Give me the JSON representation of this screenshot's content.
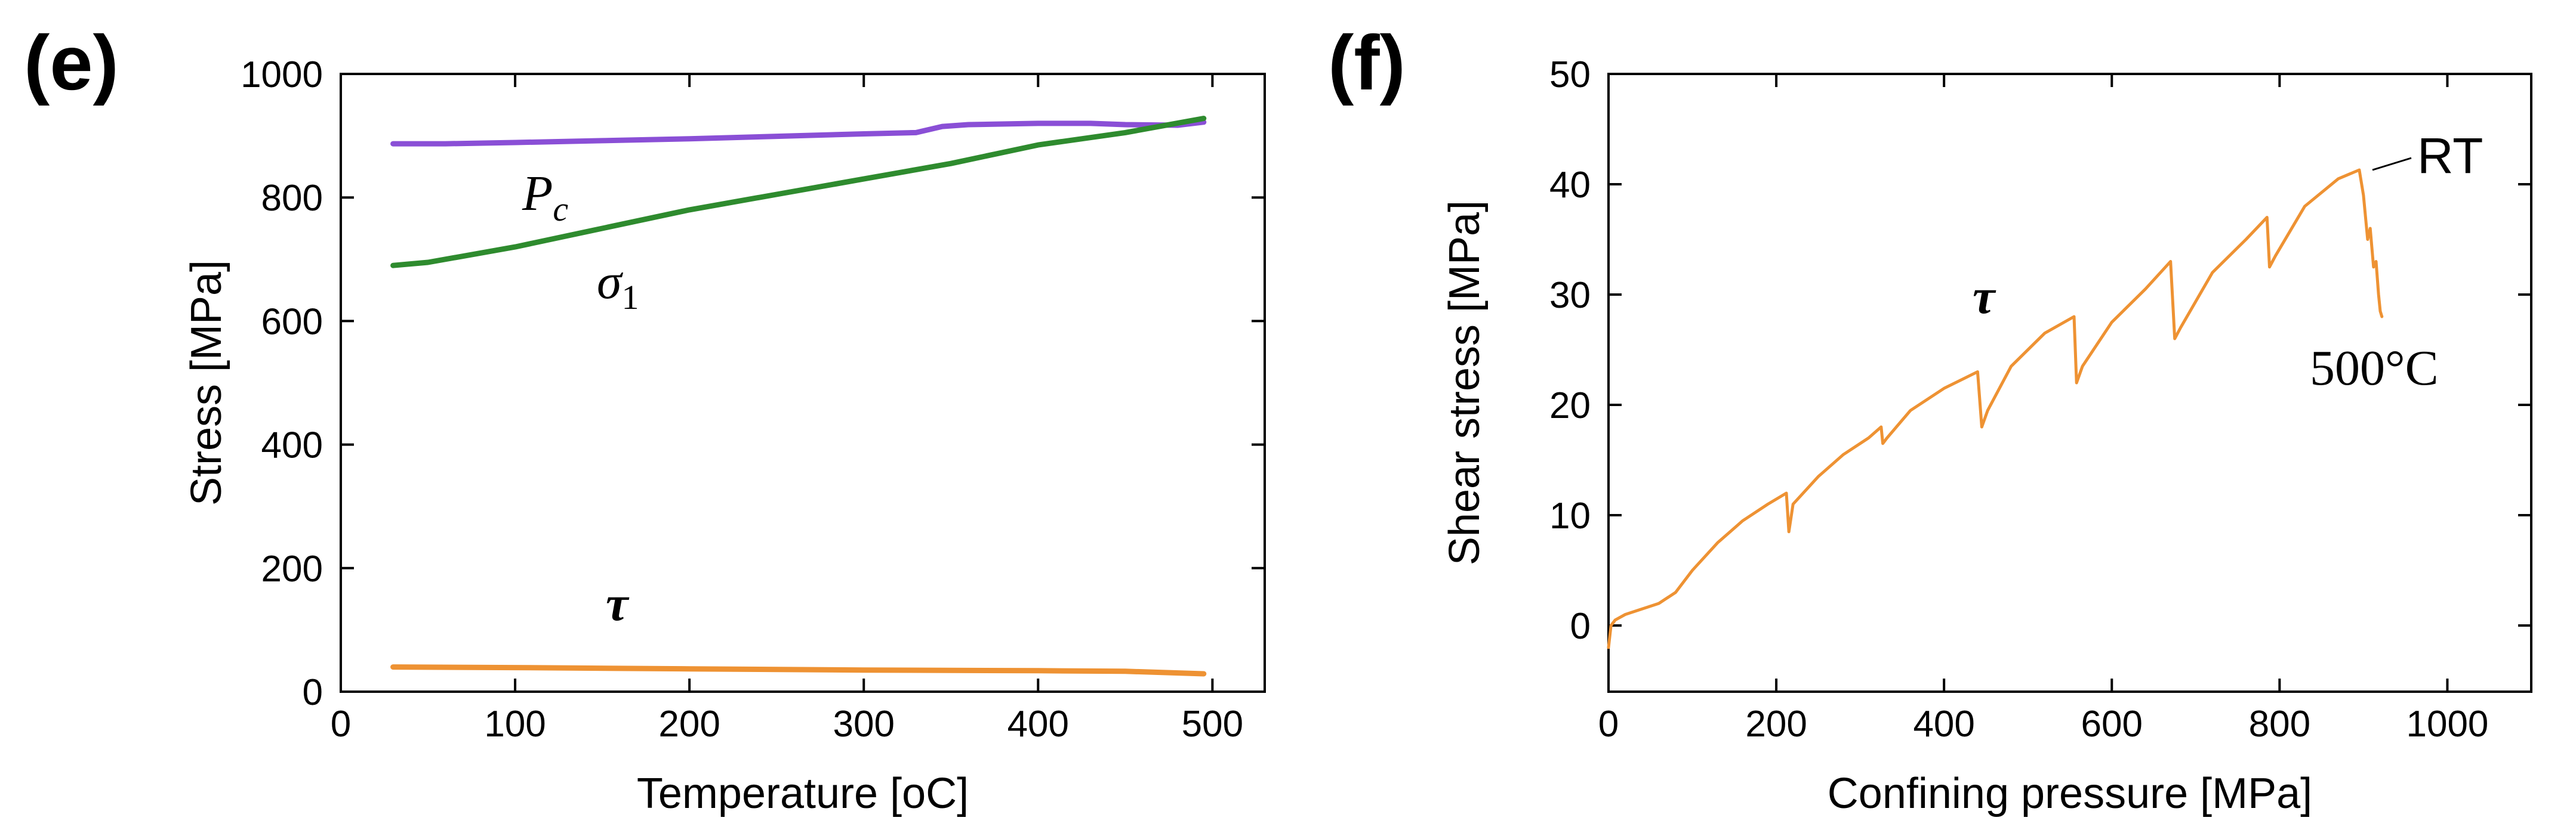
{
  "chart_data": [
    {
      "type": "line",
      "panel_label": "(e)",
      "xlabel": "Temperature [oC]",
      "ylabel": "Stress [MPa]",
      "xlim": [
        0,
        530
      ],
      "ylim": [
        0,
        1000
      ],
      "xticks": [
        0,
        100,
        200,
        300,
        400,
        500
      ],
      "yticks": [
        0,
        200,
        400,
        600,
        800,
        1000
      ],
      "grid": false,
      "series": [
        {
          "name": "Pc",
          "label_main": "P",
          "label_sub": "c",
          "color": "#8a4fd6",
          "x": [
            30,
            60,
            100,
            150,
            200,
            250,
            300,
            330,
            345,
            360,
            400,
            430,
            450,
            480,
            495
          ],
          "y": [
            887,
            887,
            889,
            892,
            895,
            899,
            903,
            905,
            915,
            918,
            920,
            920,
            918,
            917,
            922
          ]
        },
        {
          "name": "sigma1",
          "label_main": "σ",
          "label_sub": "1",
          "color": "#2e8b2e",
          "x": [
            30,
            50,
            100,
            150,
            200,
            250,
            300,
            350,
            400,
            450,
            495
          ],
          "y": [
            690,
            695,
            720,
            750,
            780,
            805,
            830,
            855,
            885,
            905,
            928
          ]
        },
        {
          "name": "tau",
          "label_main": "τ",
          "color": "#ee9233",
          "x": [
            30,
            100,
            200,
            300,
            400,
            450,
            495
          ],
          "y": [
            40,
            39,
            37,
            35,
            34,
            33,
            29
          ]
        }
      ]
    },
    {
      "type": "line",
      "panel_label": "(f)",
      "xlabel": "Confining pressure [MPa]",
      "ylabel": "Shear stress [MPa]",
      "xlim": [
        0,
        1100
      ],
      "ylim": [
        -6,
        50
      ],
      "xticks": [
        0,
        200,
        400,
        600,
        800,
        1000
      ],
      "yticks": [
        0,
        10,
        20,
        30,
        40,
        50
      ],
      "grid": false,
      "annotations": {
        "rt": "RT",
        "high_t": "500°C",
        "curve_label": "τ"
      },
      "series": [
        {
          "name": "tau",
          "color": "#ee9233",
          "x": [
            0,
            3,
            8,
            20,
            40,
            60,
            80,
            100,
            130,
            160,
            190,
            212,
            215,
            220,
            250,
            280,
            310,
            325,
            327,
            332,
            360,
            400,
            440,
            445,
            452,
            480,
            520,
            555,
            558,
            565,
            600,
            640,
            670,
            675,
            682,
            720,
            760,
            785,
            788,
            795,
            830,
            870,
            895,
            900,
            905,
            908,
            912,
            915,
            918,
            920,
            922
          ],
          "y": [
            -2,
            0,
            0.5,
            1,
            1.5,
            2,
            3,
            5,
            7.5,
            9.5,
            11,
            12,
            8.5,
            11,
            13.5,
            15.5,
            17,
            18,
            16.5,
            17,
            19.5,
            21.5,
            23,
            18,
            19.5,
            23.5,
            26.5,
            28,
            22,
            23.5,
            27.5,
            30.5,
            33,
            26,
            27,
            32,
            35,
            37,
            32.5,
            33.5,
            38,
            40.5,
            41.3,
            39,
            35,
            36,
            32.5,
            33,
            30,
            28.5,
            28
          ]
        }
      ]
    }
  ]
}
